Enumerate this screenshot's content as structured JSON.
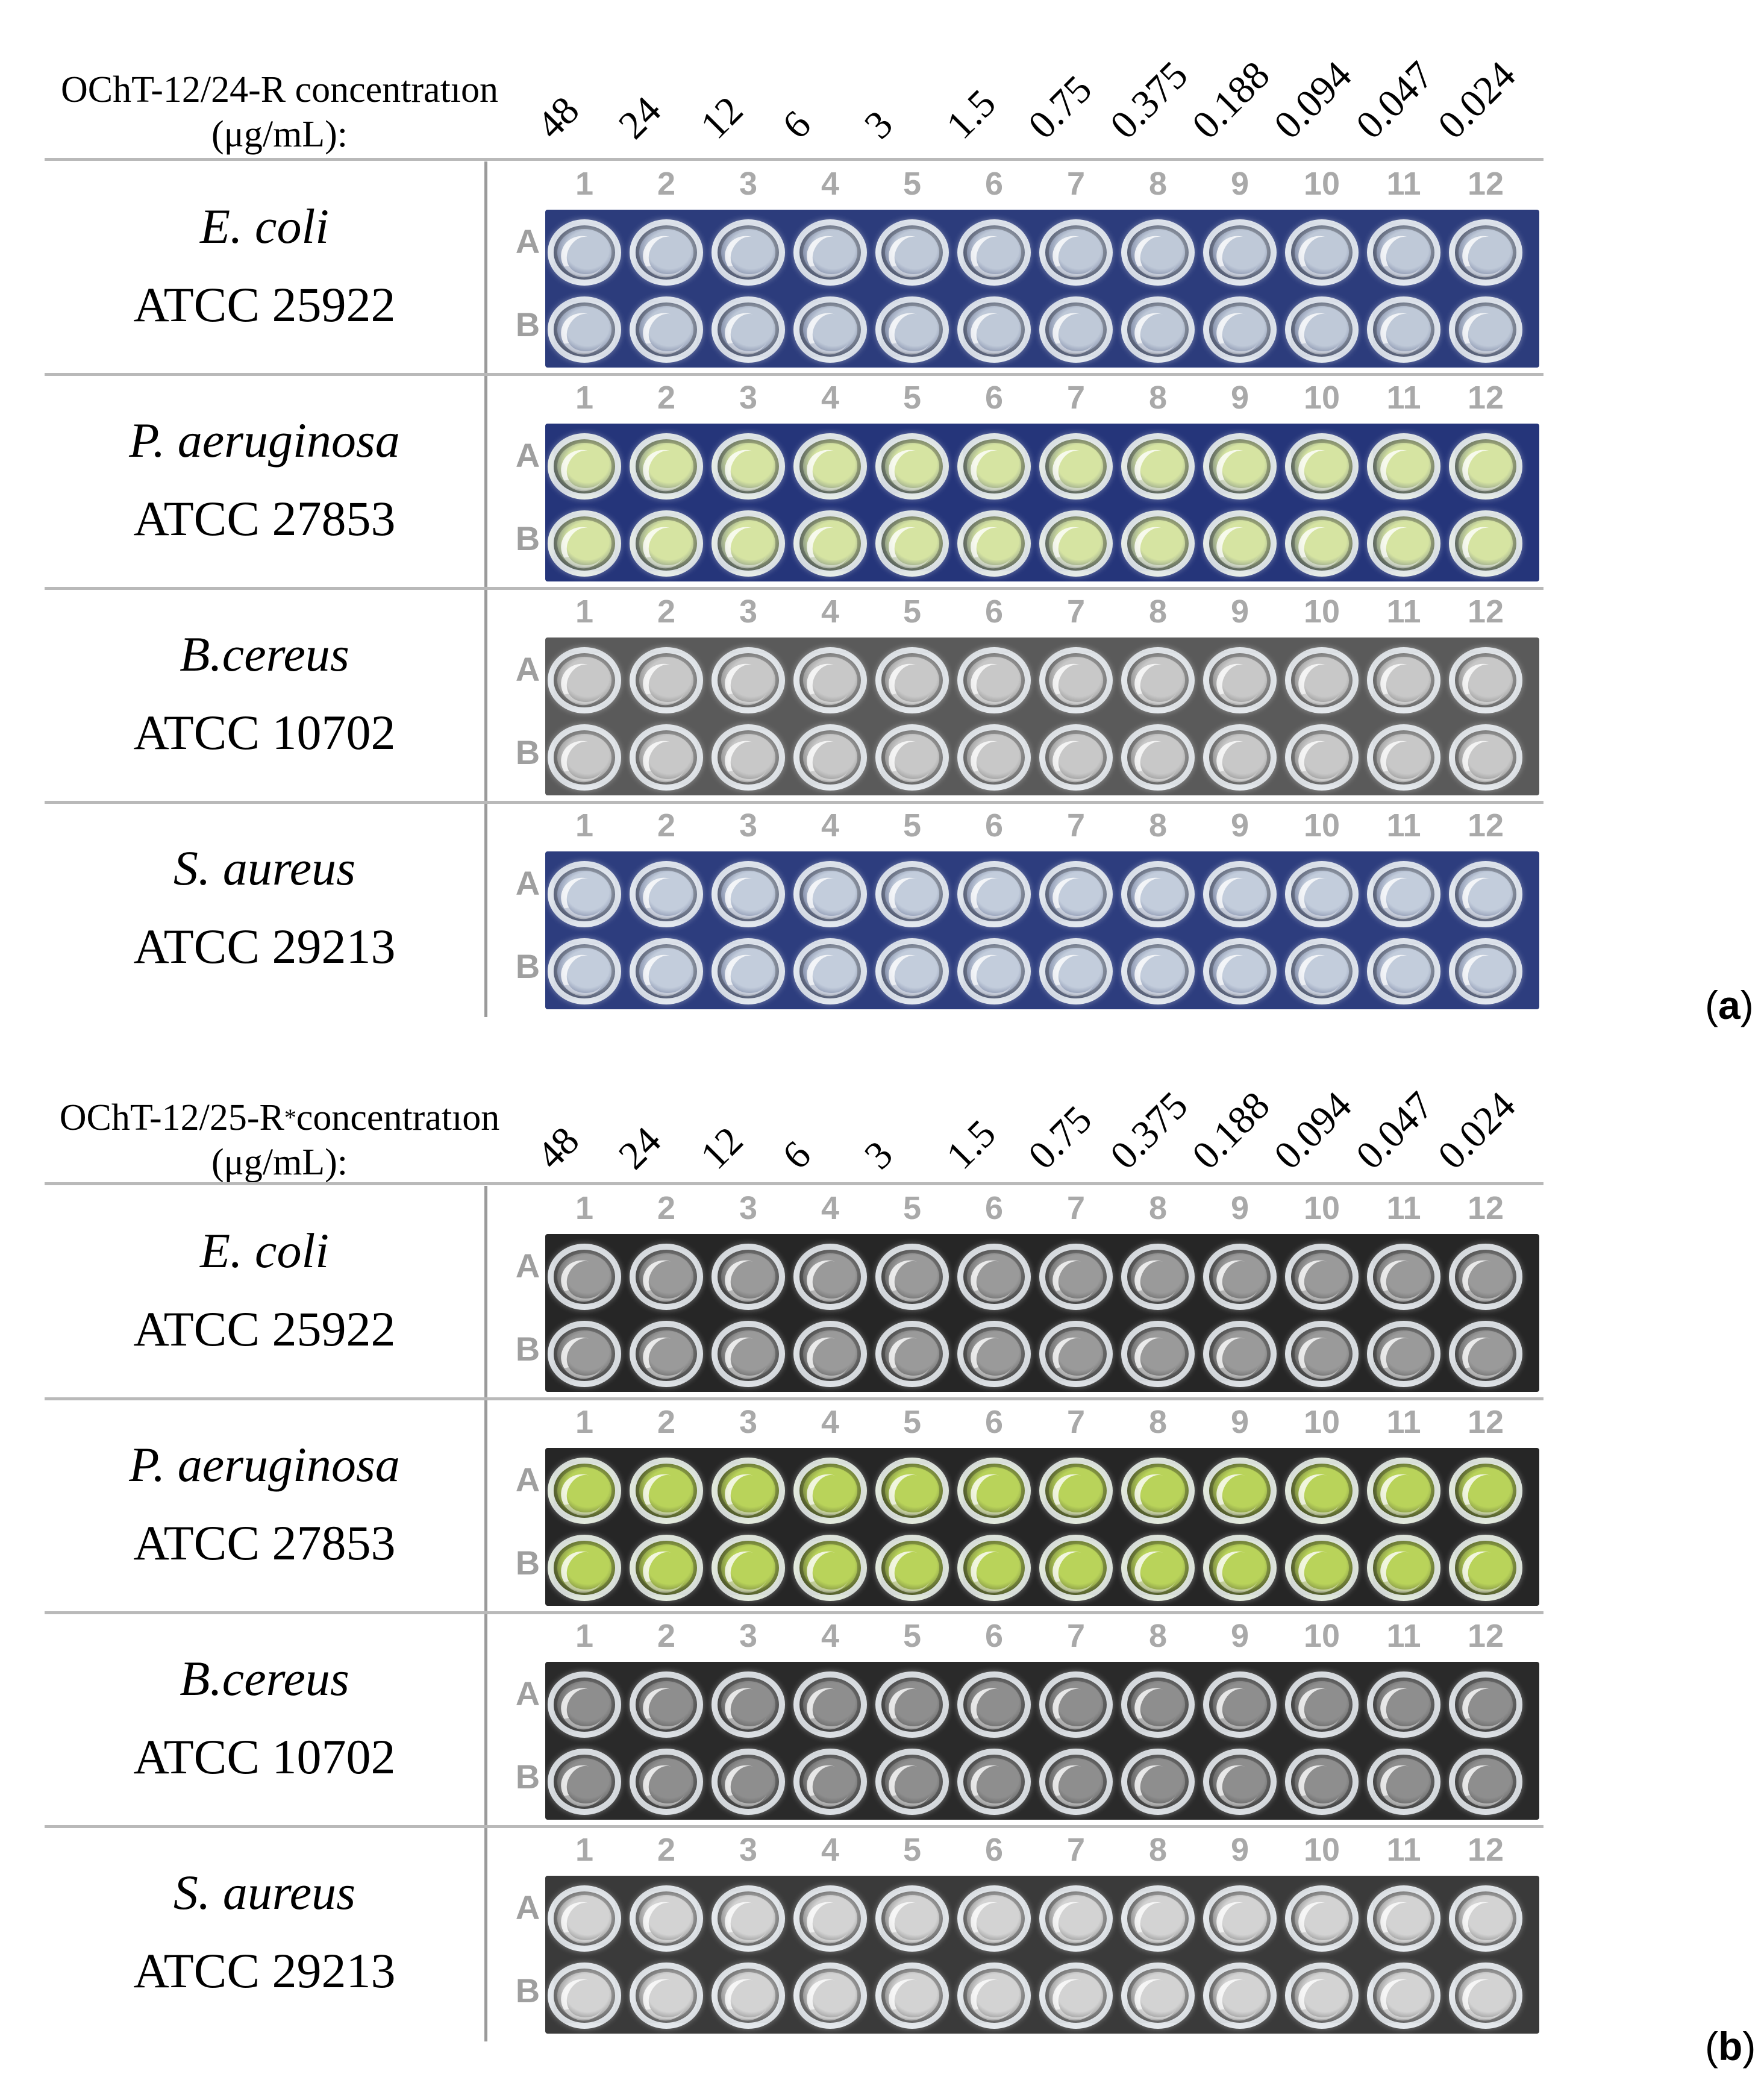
{
  "panels": [
    {
      "label": "a",
      "title_main": "OChT-12/24-R concentratıon",
      "title_sup": "",
      "title_tail": "",
      "title_unit": "(μg/mL):",
      "concentrations": [
        "48",
        "24",
        "12",
        "6",
        "3",
        "1.5",
        "0.75",
        "0.375",
        "0.188",
        "0.094",
        "0.047",
        "0.024"
      ],
      "rows": [
        {
          "species": "E. coli",
          "strain": "ATCC 25922",
          "plate_color": "#2c3c7c",
          "well_fill": "#bfc9d8"
        },
        {
          "species": "P. aeruginosa",
          "strain": "ATCC 27853",
          "plate_color": "#25357a",
          "well_fill": "#d6e4a2"
        },
        {
          "species": "B.cereus",
          "strain": "ATCC 10702",
          "plate_color": "#5a5a5a",
          "well_fill": "#c8c8c8"
        },
        {
          "species": "S. aureus",
          "strain": "ATCC 29213",
          "plate_color": "#2d3d7e",
          "well_fill": "#c3cddc"
        }
      ]
    },
    {
      "label": "b",
      "title_main": "OChT-12/25-R",
      "title_sup": "*",
      "title_tail": "concentratıon",
      "title_unit": "(μg/mL):",
      "concentrations": [
        "48",
        "24",
        "12",
        "6",
        "3",
        "1.5",
        "0.75",
        "0.375",
        "0.188",
        "0.094",
        "0.047",
        "0.024"
      ],
      "rows": [
        {
          "species": "E. coli",
          "strain": "ATCC 25922",
          "plate_color": "#262626",
          "well_fill": "#9a9a9a"
        },
        {
          "species": "P. aeruginosa",
          "strain": "ATCC 27853",
          "plate_color": "#262626",
          "well_fill": "#b9d35a"
        },
        {
          "species": "B.cereus",
          "strain": "ATCC 10702",
          "plate_color": "#2a2a2a",
          "well_fill": "#8e8e8e"
        },
        {
          "species": "S. aureus",
          "strain": "ATCC 29213",
          "plate_color": "#3a3a3a",
          "well_fill": "#d3d3d3"
        }
      ]
    }
  ],
  "column_numbers": [
    "1",
    "2",
    "3",
    "4",
    "5",
    "6",
    "7",
    "8",
    "9",
    "10",
    "11",
    "12"
  ],
  "row_letters": [
    "A",
    "B"
  ]
}
